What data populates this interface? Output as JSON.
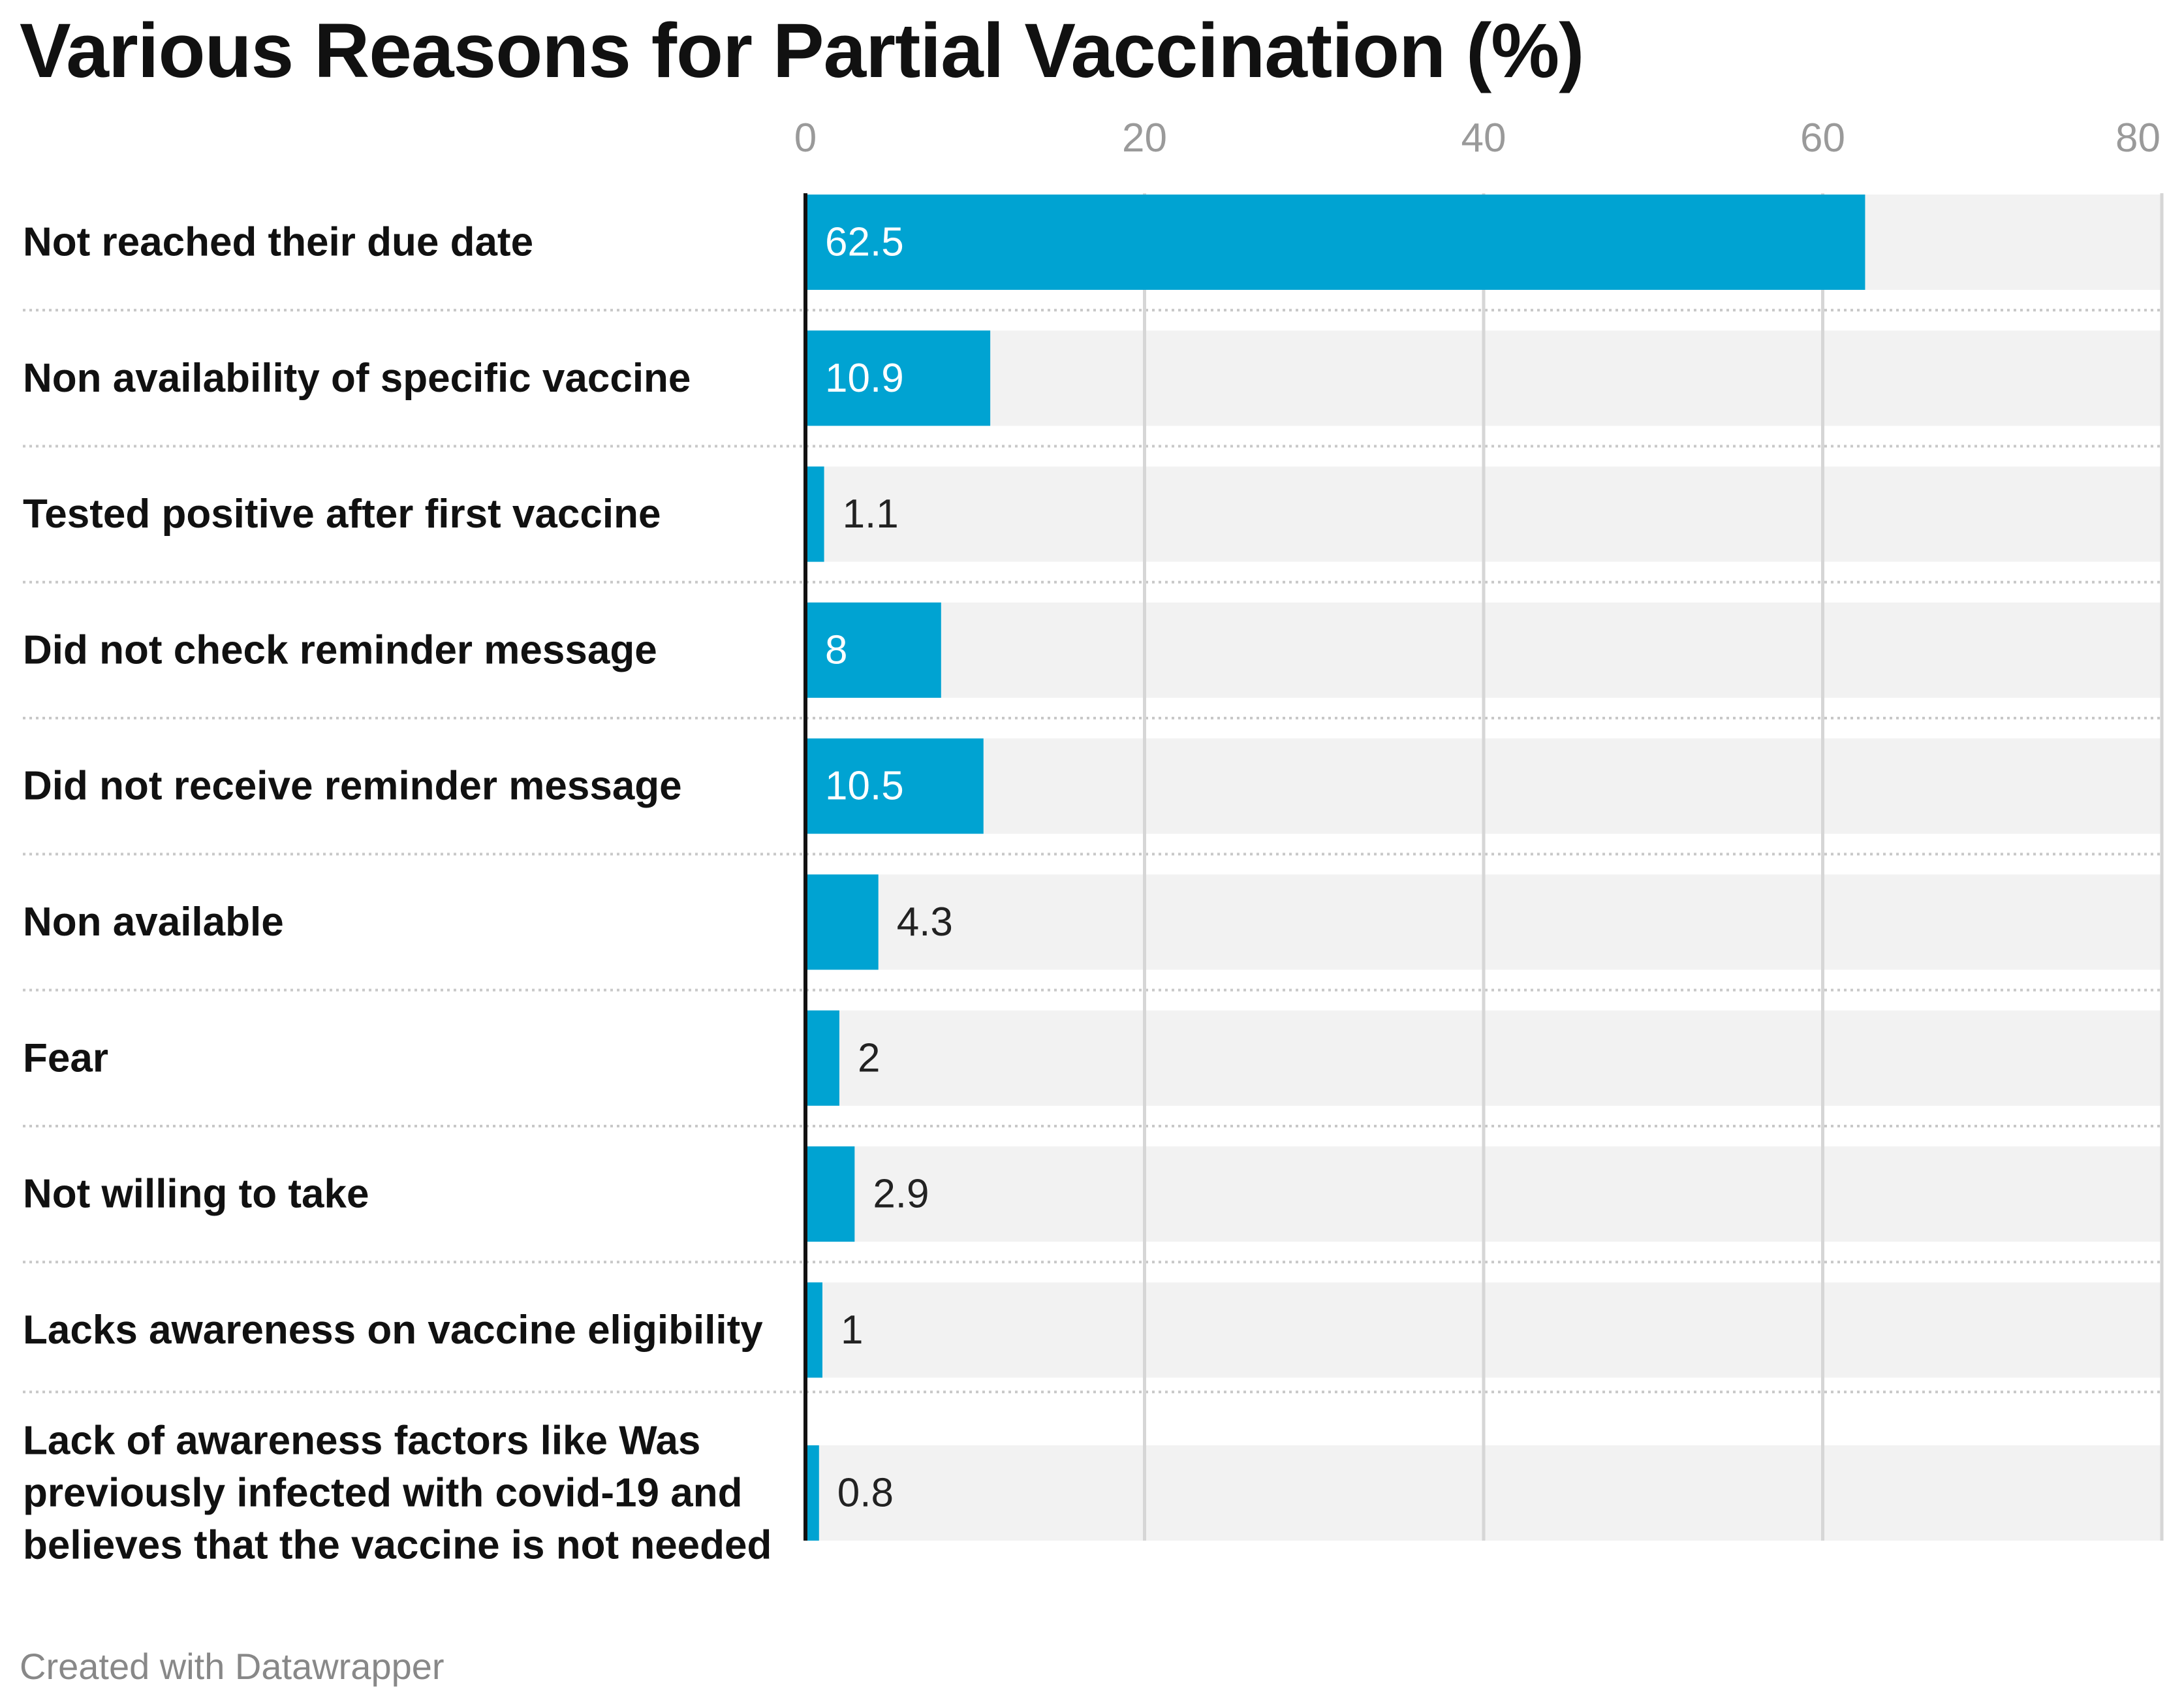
{
  "chart_data": {
    "type": "bar",
    "orientation": "horizontal",
    "title": "Various Reasons for Partial Vaccination (%)",
    "xlabel": "",
    "ylabel": "",
    "xlim": [
      0,
      80
    ],
    "x_ticks": [
      "0",
      "20",
      "40",
      "60",
      "80"
    ],
    "grid": true,
    "bar_color": "#00a3d2",
    "track_color": "#f2f2f2",
    "categories": [
      [
        "Not reached their due date"
      ],
      [
        "Non availability of specific vaccine"
      ],
      [
        "Tested positive after first vaccine"
      ],
      [
        "Did not check reminder message"
      ],
      [
        "Did not receive reminder message"
      ],
      [
        "Non available"
      ],
      [
        "Fear"
      ],
      [
        "Not willing to take"
      ],
      [
        "Lacks awareness on vaccine eligibility"
      ],
      [
        "Lack of awareness factors like Was",
        "previously infected with covid-19 and",
        "believes that the vaccine is not needed"
      ]
    ],
    "values": [
      62.5,
      10.9,
      1.1,
      8,
      10.5,
      4.3,
      2,
      2.9,
      1,
      0.8
    ],
    "value_labels": [
      "62.5",
      "10.9",
      "1.1",
      "8",
      "10.5",
      "4.3",
      "2",
      "2.9",
      "1",
      "0.8"
    ]
  },
  "footer": {
    "source": "Created with Datawrapper"
  }
}
